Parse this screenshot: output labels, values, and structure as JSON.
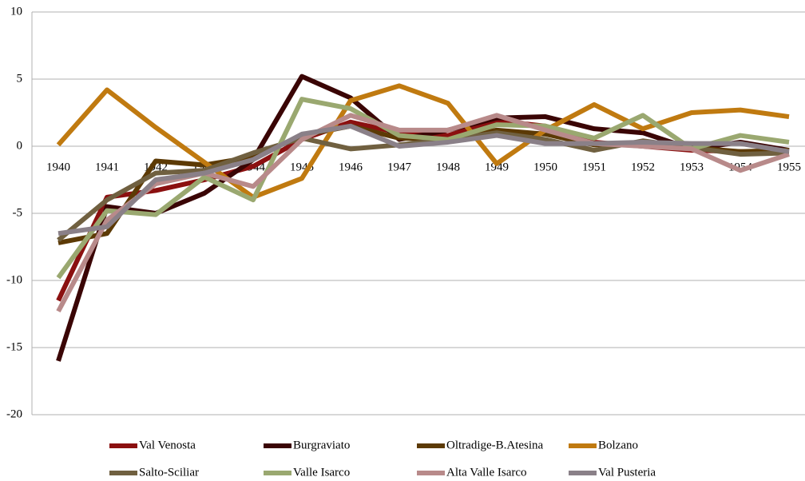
{
  "chart_data": {
    "type": "line",
    "categories": [
      "1940",
      "1941",
      "1942",
      "1943",
      "1944",
      "1945",
      "1946",
      "1947",
      "1948",
      "1949",
      "1950",
      "1951",
      "1952",
      "1953",
      "1954",
      "1955"
    ],
    "ylim": [
      -20,
      10
    ],
    "yticks": [
      -20,
      -15,
      -10,
      -5,
      0,
      5,
      10
    ],
    "grid": true,
    "legend": "bottom",
    "series": [
      {
        "name": "Val Venosta",
        "color": "#8b1010",
        "values": [
          -11.5,
          -3.8,
          -3.3,
          -2.5,
          -1.5,
          0.5,
          1.8,
          1.0,
          0.8,
          1.9,
          1.5,
          0.3,
          0,
          -0.3,
          -0.4,
          -0.5
        ]
      },
      {
        "name": "Burgraviato",
        "color": "#3a0505",
        "values": [
          -16,
          -4.5,
          -5,
          -3.5,
          -1,
          5.2,
          3.6,
          0.5,
          1.2,
          2.1,
          2.2,
          1.3,
          1.0,
          -0.2,
          0.3,
          -0.3
        ]
      },
      {
        "name": "Oltradige-B.Atesina",
        "color": "#5c3a05",
        "values": [
          -7.2,
          -6.5,
          -1.1,
          -1.4,
          -0.8,
          0.8,
          1.5,
          0.6,
          0.5,
          1.2,
          0.9,
          0.1,
          0.3,
          -0.1,
          -0.4,
          -0.3
        ]
      },
      {
        "name": "Bolzano",
        "color": "#c07a10",
        "values": [
          0.1,
          4.2,
          1.4,
          -1.2,
          -3.8,
          -2.4,
          3.4,
          4.5,
          3.2,
          -1.3,
          1.2,
          3.1,
          1.3,
          2.5,
          2.7,
          2.2
        ]
      },
      {
        "name": "Salto-Sciliar",
        "color": "#706040",
        "values": [
          -7,
          -4,
          -2,
          -1.8,
          -0.5,
          0.6,
          -0.2,
          0.1,
          0.5,
          1.0,
          0.5,
          -0.3,
          0.4,
          -0.1,
          -0.6,
          -0.5
        ]
      },
      {
        "name": "Valle Isarco",
        "color": "#9aa870",
        "values": [
          -9.8,
          -4.8,
          -5.1,
          -2.3,
          -4,
          3.5,
          2.8,
          0.8,
          0.5,
          1.6,
          1.5,
          0.6,
          2.3,
          -0.2,
          0.8,
          0.3
        ]
      },
      {
        "name": "Alta Valle Isarco",
        "color": "#b88a8a",
        "values": [
          -12.3,
          -5.5,
          -2.8,
          -2,
          -3,
          0.5,
          2.3,
          1.2,
          1.2,
          2.3,
          1.2,
          0.2,
          0,
          -0.2,
          -1.8,
          -0.6
        ]
      },
      {
        "name": "Val Pusteria",
        "color": "#8a8088",
        "values": [
          -6.5,
          -6,
          -2.5,
          -2,
          -1,
          0.9,
          1.5,
          0,
          0.3,
          0.8,
          0.2,
          0.2,
          0.3,
          0.2,
          0.2,
          -0.4
        ]
      }
    ]
  }
}
